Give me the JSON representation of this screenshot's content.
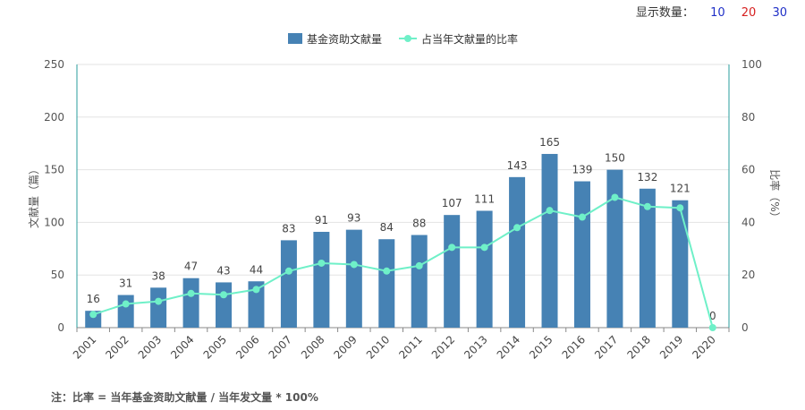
{
  "display_count": {
    "label": "显示数量：",
    "options": [
      {
        "label": "10",
        "color": "#1f2fc7"
      },
      {
        "label": "20",
        "color": "#d62020"
      },
      {
        "label": "30",
        "color": "#1f2fc7"
      }
    ]
  },
  "note": "注：比率 = 当年基金资助文献量 / 当年发文量 * 100%",
  "chart_data": {
    "type": "bar",
    "categories": [
      "2001",
      "2002",
      "2003",
      "2004",
      "2005",
      "2006",
      "2007",
      "2008",
      "2009",
      "2010",
      "2011",
      "2012",
      "2013",
      "2014",
      "2015",
      "2016",
      "2017",
      "2018",
      "2019",
      "2020"
    ],
    "series": [
      {
        "name": "基金资助文献量",
        "type": "bar",
        "axis": "left",
        "color": "#4682b4",
        "values": [
          16,
          31,
          38,
          47,
          43,
          44,
          83,
          91,
          93,
          84,
          88,
          107,
          111,
          143,
          165,
          139,
          150,
          132,
          121,
          0
        ]
      },
      {
        "name": "占当年文献量的比率",
        "type": "line",
        "axis": "right",
        "color": "#6ff0c8",
        "values": [
          5,
          9,
          10,
          13,
          12.5,
          14.5,
          21.5,
          24.5,
          24,
          21.5,
          23.5,
          30.5,
          30.5,
          38,
          44.5,
          42,
          49.5,
          46,
          45.5,
          0
        ]
      }
    ],
    "y_left": {
      "label": "文献量（篇）",
      "min": 0,
      "max": 250,
      "ticks": [
        0,
        50,
        100,
        150,
        200,
        250
      ]
    },
    "y_right": {
      "label": "比率（%）",
      "min": 0,
      "max": 100,
      "ticks": [
        0,
        20,
        40,
        60,
        80,
        100
      ]
    },
    "legend_position": "top-center",
    "grid": true
  }
}
